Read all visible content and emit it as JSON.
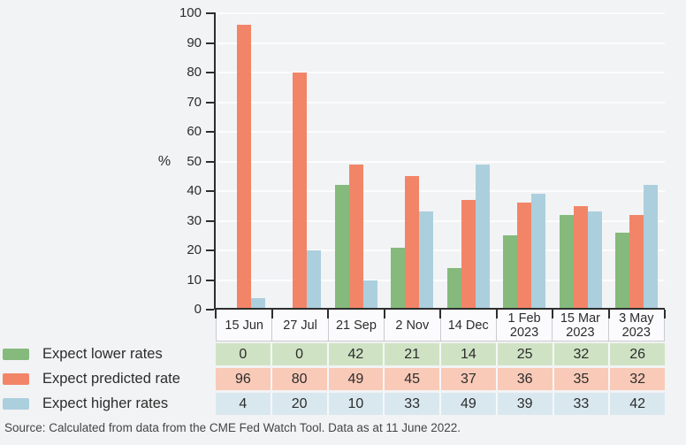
{
  "chart_data": {
    "type": "bar",
    "title": "",
    "unit_label": "%",
    "ylim": [
      0,
      100
    ],
    "ytick_step": 10,
    "grid": "horizontal-white",
    "legend_position": "left-of-table",
    "categories": [
      "15 Jun",
      "27 Jul",
      "21 Sep",
      "2 Nov",
      "14 Dec",
      "1 Feb\n2023",
      "15 Mar\n2023",
      "3 May\n2023"
    ],
    "series": [
      {
        "name": "Expect lower rates",
        "key": "lower",
        "color": "#85ba7c",
        "row_color": "#cfe3c4",
        "values": [
          0,
          0,
          42,
          21,
          14,
          25,
          32,
          26
        ]
      },
      {
        "name": "Expect predicted rate",
        "key": "predicted",
        "color": "#f28568",
        "row_color": "#f9cab7",
        "values": [
          96,
          80,
          49,
          45,
          37,
          36,
          35,
          32
        ]
      },
      {
        "name": "Expect higher rates",
        "key": "higher",
        "color": "#accfdd",
        "row_color": "#d9e8ef",
        "values": [
          4,
          20,
          10,
          33,
          49,
          39,
          33,
          42
        ]
      }
    ]
  },
  "footer": {
    "source_text": "Source: Calculated from data from the CME Fed Watch Tool. Data as at 11 June 2022."
  },
  "colors": {
    "background": "#f2f3f5",
    "axis": "#2e2e2e",
    "gridline": "#fdfdfe",
    "header_bg": "#fbfbfd",
    "text": "#2c2c2c",
    "source_text": "#454545"
  }
}
